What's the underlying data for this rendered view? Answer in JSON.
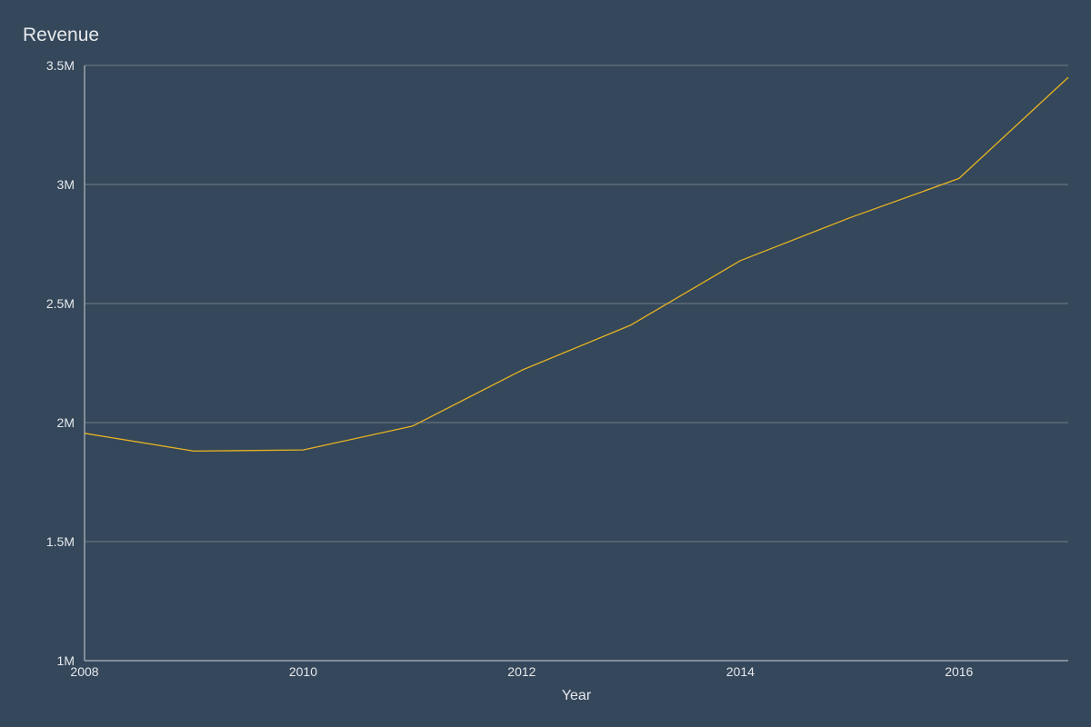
{
  "chart_data": {
    "type": "line",
    "title": "Revenue",
    "xlabel": "Year",
    "ylabel": "",
    "xlim": [
      2008,
      2017
    ],
    "ylim": [
      1000000,
      3500000
    ],
    "x_ticks": [
      2008,
      2010,
      2012,
      2014,
      2016
    ],
    "x_tick_labels": [
      "2008",
      "2010",
      "2012",
      "2014",
      "2016"
    ],
    "y_ticks": [
      1000000,
      1500000,
      2000000,
      2500000,
      3000000,
      3500000
    ],
    "y_tick_labels": [
      "1M",
      "1.5M",
      "2M",
      "2.5M",
      "3M",
      "3.5M"
    ],
    "grid": true,
    "legend": "none",
    "series": [
      {
        "color": "#e6b422",
        "x": [
          2008,
          2009,
          2010,
          2011,
          2012,
          2013,
          2014,
          2015,
          2016,
          2017
        ],
        "values": [
          1955000,
          1880000,
          1885000,
          1985000,
          2220000,
          2410000,
          2680000,
          2860000,
          3025000,
          3450000
        ]
      }
    ]
  },
  "colors": {
    "background": "#35475a",
    "grid": "#6e7c88",
    "axis": "#9aa4ad",
    "text": "#e6e9ec"
  }
}
